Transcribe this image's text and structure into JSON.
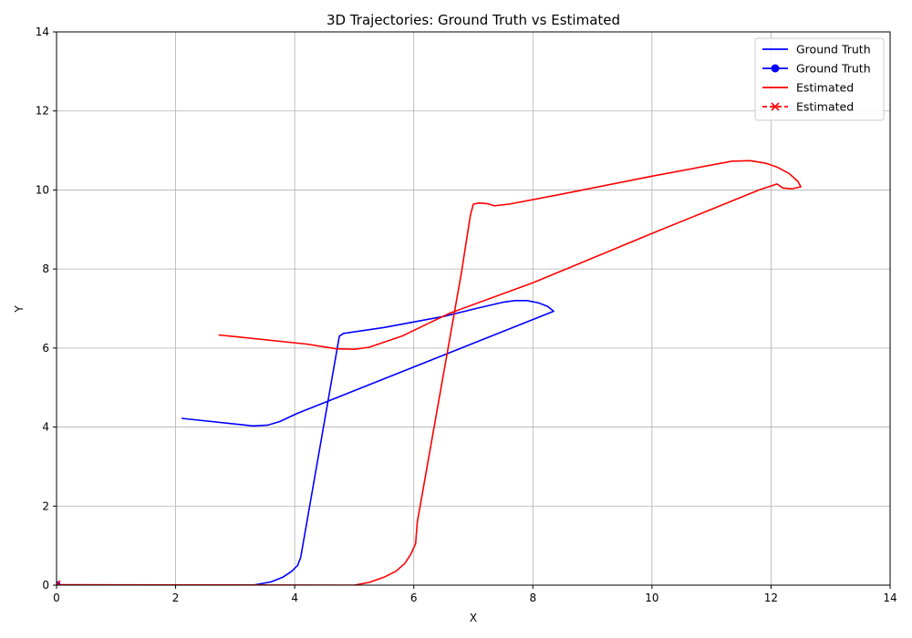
{
  "chart_data": {
    "type": "line",
    "title": "3D Trajectories: Ground Truth vs Estimated",
    "xlabel": "X",
    "ylabel": "Y",
    "xlim": [
      0,
      14
    ],
    "ylim": [
      0,
      14
    ],
    "xticks": [
      0,
      2,
      4,
      6,
      8,
      10,
      12,
      14
    ],
    "yticks": [
      0,
      2,
      4,
      6,
      8,
      10,
      12,
      14
    ],
    "grid": true,
    "legend_position": "top-right",
    "series": [
      {
        "name": "Ground Truth",
        "style": "line",
        "color": "#0000ff",
        "points": [
          [
            0,
            0
          ],
          [
            3.3,
            0
          ],
          [
            3.6,
            0.08
          ],
          [
            3.8,
            0.2
          ],
          [
            3.95,
            0.35
          ],
          [
            4.05,
            0.5
          ],
          [
            4.1,
            0.7
          ],
          [
            4.75,
            6.3
          ],
          [
            4.82,
            6.37
          ],
          [
            5.5,
            6.52
          ],
          [
            6.5,
            6.8
          ],
          [
            7.1,
            7.02
          ],
          [
            7.5,
            7.16
          ],
          [
            7.7,
            7.2
          ],
          [
            7.9,
            7.2
          ],
          [
            8.1,
            7.14
          ],
          [
            8.25,
            7.05
          ],
          [
            8.35,
            6.93
          ],
          [
            4.05,
            4.35
          ],
          [
            3.75,
            4.14
          ],
          [
            3.55,
            4.05
          ],
          [
            3.3,
            4.03
          ],
          [
            2.1,
            4.22
          ]
        ]
      },
      {
        "name": "Ground Truth",
        "style": "line-marker-circle",
        "color": "#0000ff",
        "points": [
          [
            0,
            0
          ]
        ]
      },
      {
        "name": "Estimated",
        "style": "line",
        "color": "#ff0000",
        "points": [
          [
            0,
            0.01
          ],
          [
            5.0,
            0
          ],
          [
            5.25,
            0.07
          ],
          [
            5.5,
            0.2
          ],
          [
            5.7,
            0.35
          ],
          [
            5.85,
            0.55
          ],
          [
            5.95,
            0.78
          ],
          [
            6.03,
            1.05
          ],
          [
            6.06,
            1.6
          ],
          [
            6.8,
            7.9
          ],
          [
            6.95,
            9.35
          ],
          [
            7.0,
            9.64
          ],
          [
            7.1,
            9.67
          ],
          [
            7.25,
            9.65
          ],
          [
            7.35,
            9.6
          ],
          [
            7.6,
            9.64
          ],
          [
            8.5,
            9.9
          ],
          [
            10.0,
            10.35
          ],
          [
            11.35,
            10.73
          ],
          [
            11.65,
            10.74
          ],
          [
            11.9,
            10.68
          ],
          [
            12.1,
            10.58
          ],
          [
            12.3,
            10.42
          ],
          [
            12.45,
            10.22
          ],
          [
            12.5,
            10.08
          ],
          [
            12.35,
            10.03
          ],
          [
            12.2,
            10.05
          ],
          [
            12.1,
            10.15
          ],
          [
            11.8,
            10.0
          ],
          [
            10.0,
            8.9
          ],
          [
            8.0,
            7.65
          ],
          [
            6.6,
            6.88
          ],
          [
            5.8,
            6.3
          ],
          [
            5.25,
            6.02
          ],
          [
            5.0,
            5.97
          ],
          [
            4.7,
            5.98
          ],
          [
            4.2,
            6.1
          ],
          [
            2.72,
            6.33
          ]
        ]
      },
      {
        "name": "Estimated",
        "style": "dashed-marker-x",
        "color": "#ff0000",
        "points": [
          [
            0,
            0.02
          ]
        ]
      }
    ]
  }
}
